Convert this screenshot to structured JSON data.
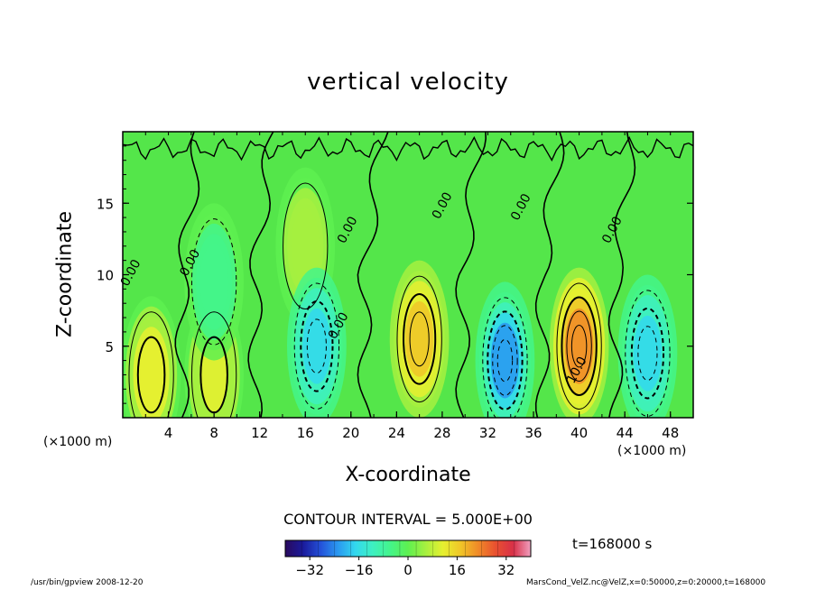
{
  "chart_data": {
    "type": "heatmap",
    "title": "vertical velocity",
    "xlabel": "X-coordinate",
    "ylabel": "Z-coordinate",
    "x_unit_left": "(×1000 m)",
    "x_unit_right": "(×1000 m)",
    "xlim": [
      0,
      50
    ],
    "ylim": [
      0,
      20
    ],
    "x_ticks": [
      4,
      8,
      12,
      16,
      20,
      24,
      28,
      32,
      36,
      40,
      44,
      48
    ],
    "y_ticks": [
      5,
      10,
      15
    ],
    "contour_interval_text": "CONTOUR INTERVAL = 5.000E+00",
    "contour_labels": [
      {
        "text": "0.00",
        "x": 1.0,
        "y": 10.0
      },
      {
        "text": "0.00",
        "x": 6.2,
        "y": 10.7
      },
      {
        "text": "0.00",
        "x": 20.0,
        "y": 13.0
      },
      {
        "text": "0.00",
        "x": 19.2,
        "y": 6.3
      },
      {
        "text": "0.00",
        "x": 28.3,
        "y": 14.7
      },
      {
        "text": "0.00",
        "x": 35.2,
        "y": 14.6
      },
      {
        "text": "0.00",
        "x": 43.2,
        "y": 13.0
      },
      {
        "text": "10.0",
        "x": 40.1,
        "y": 3.2
      }
    ],
    "colorbar": {
      "range": [
        -40,
        40
      ],
      "tick_values": [
        -32,
        -16,
        0,
        16,
        32
      ],
      "tick_labels": [
        "−32",
        "−16",
        "0",
        "16",
        "32"
      ],
      "colors": [
        "#2a0a5e",
        "#1a1a9a",
        "#2450d8",
        "#2a98f0",
        "#33d8ee",
        "#3ef0c0",
        "#44f48a",
        "#5ef050",
        "#a6f040",
        "#e6f030",
        "#f0c628",
        "#f08a28",
        "#e85030",
        "#d83048",
        "#f0a0c0"
      ]
    },
    "time_label": "t=168000 s",
    "cells": [
      {
        "x": 2.5,
        "z": 3.0,
        "w": 10
      },
      {
        "x": 8.0,
        "z": 3.0,
        "w": 8
      },
      {
        "x": 8.0,
        "z": 9.5,
        "w": -5
      },
      {
        "x": 16.0,
        "z": 12.0,
        "w": 5
      },
      {
        "x": 17.0,
        "z": 5.0,
        "w": -15
      },
      {
        "x": 26.0,
        "z": 5.5,
        "w": 15
      },
      {
        "x": 33.5,
        "z": 4.0,
        "w": -20
      },
      {
        "x": 40.0,
        "z": 5.0,
        "w": 22
      },
      {
        "x": 46.0,
        "z": 4.5,
        "w": -15
      }
    ]
  },
  "footer": {
    "left": "/usr/bin/gpview   2008-12-20",
    "right": "MarsCond_VelZ.nc@VelZ,x=0:50000,z=0:20000,t=168000"
  }
}
